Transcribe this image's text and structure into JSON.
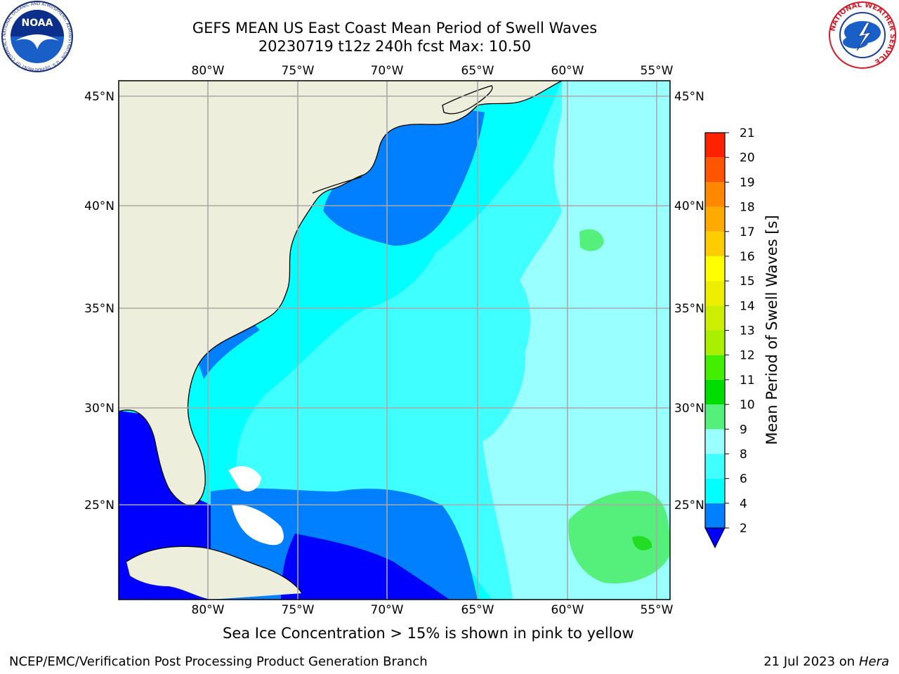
{
  "title": {
    "line1": "GEFS MEAN US East Coast Mean Period of Swell Waves",
    "line2": "20230719 t12z 240h fcst   Max: 10.50"
  },
  "logos": {
    "noaa_text": "NOAA",
    "noaa_ring": "NATIONAL OCEANIC AND ATMOSPHERIC ADMINISTRATION · U.S. DEPARTMENT OF COMMERCE",
    "nws_ring": "NATIONAL WEATHER SERVICE"
  },
  "map": {
    "lon_labels": [
      "80°W",
      "75°W",
      "70°W",
      "65°W",
      "60°W",
      "55°W"
    ],
    "lat_labels": [
      "45°N",
      "40°N",
      "35°N",
      "30°N",
      "25°N"
    ],
    "grid": true,
    "colors": {
      "land": "#eeeedc",
      "p2_4": "#0080ff",
      "p4_6": "#00ffff",
      "p6_8": "#40ffff",
      "p8_9": "#99ffff",
      "p9_10": "#55f07c",
      "p10_11": "#22dd22",
      "under": "#0000ff",
      "missing": "#ffffff"
    }
  },
  "colorbar": {
    "label": "Mean Period of Swell Waves [s]",
    "ticks": [
      "2",
      "4",
      "6",
      "8",
      "9",
      "10",
      "11",
      "12",
      "13",
      "14",
      "15",
      "16",
      "17",
      "18",
      "19",
      "20",
      "21"
    ],
    "colors": [
      "#0080ff",
      "#00ffff",
      "#40ffff",
      "#99ffff",
      "#55f07c",
      "#00dd00",
      "#44ee00",
      "#aaee00",
      "#ccee00",
      "#eeee00",
      "#ffff00",
      "#ffcc00",
      "#ffaa00",
      "#ff8800",
      "#ff5500",
      "#ff2200"
    ],
    "under_color": "#0000ff"
  },
  "caption": "Sea Ice Concentration > 15% is shown in pink to yellow",
  "footer": {
    "left": "NCEP/EMC/Verification Post Processing Product Generation Branch",
    "right_prefix": "21 Jul 2023 on ",
    "right_italic": "Hera"
  }
}
